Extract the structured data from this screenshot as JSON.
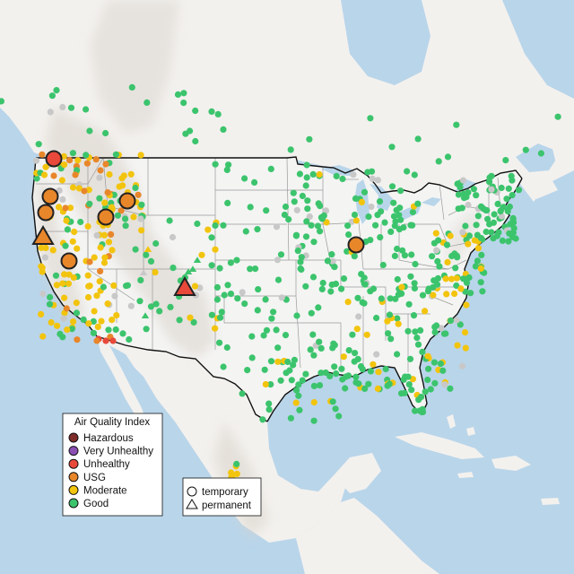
{
  "legend": {
    "title": "Air Quality Index",
    "items": [
      {
        "label": "Hazardous",
        "color": "#7e2b2a"
      },
      {
        "label": "Very Unhealthy",
        "color": "#8a4fb3"
      },
      {
        "label": "Unhealthy",
        "color": "#e8493a"
      },
      {
        "label": "USG",
        "color": "#e8862a"
      },
      {
        "label": "Moderate",
        "color": "#f2c40d"
      },
      {
        "label": "Good",
        "color": "#3cc46d"
      }
    ]
  },
  "shape_legend": {
    "items": [
      {
        "label": "temporary",
        "shape": "circle"
      },
      {
        "label": "permanent",
        "shape": "triangle"
      }
    ]
  },
  "colors": {
    "water": "#b9d5ea",
    "land": "#f3f1ee",
    "usa": "#f4f4f3",
    "terrain": "#dad6cf",
    "borders": "#9a9a9a",
    "coast": "#111111",
    "missing": "#c8c8c8"
  }
}
